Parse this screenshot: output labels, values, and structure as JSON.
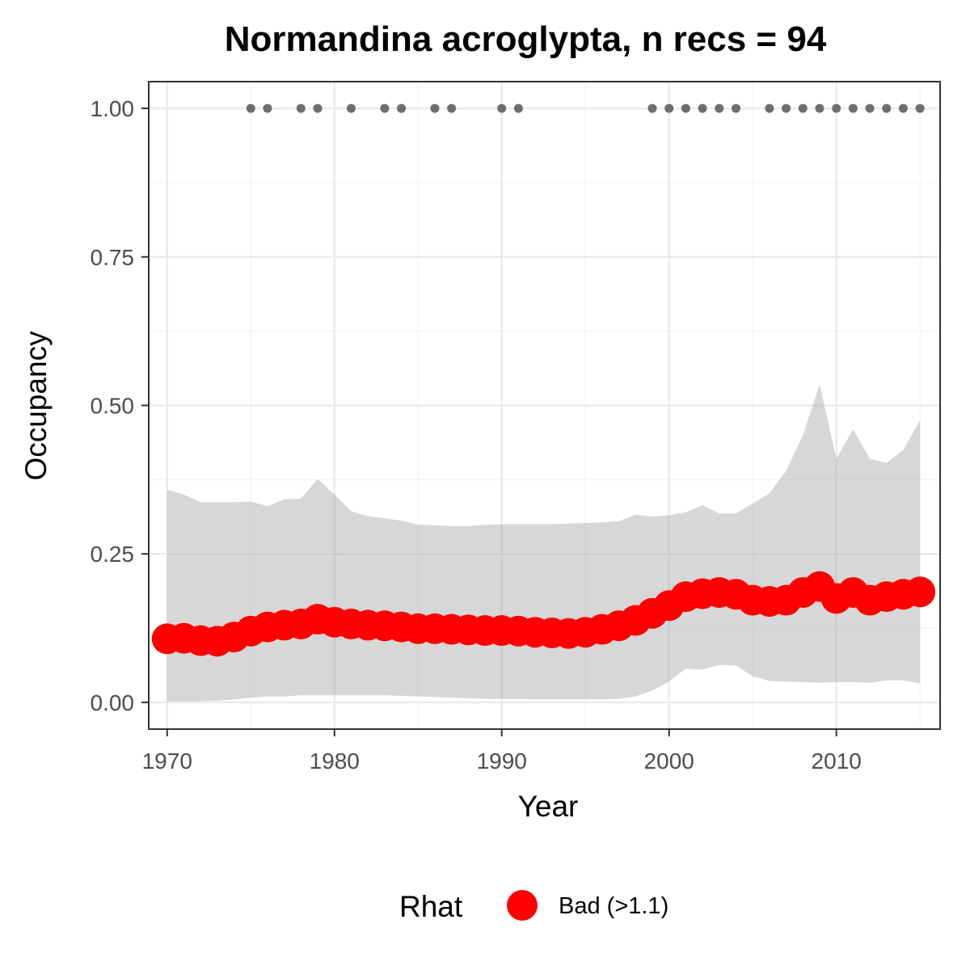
{
  "chart_data": {
    "type": "line",
    "title": "Normandina acroglypta, n recs = 94",
    "xlabel": "Year",
    "ylabel": "Occupancy",
    "xlim": [
      1968.9,
      2016.2
    ],
    "ylim": [
      -0.045,
      1.045
    ],
    "x_ticks": [
      "1970",
      "1980",
      "1990",
      "2000",
      "2010"
    ],
    "x_tick_values": [
      1970,
      1980,
      1990,
      2000,
      2010
    ],
    "y_ticks": [
      "0.00",
      "0.25",
      "0.50",
      "0.75",
      "1.00"
    ],
    "y_tick_values": [
      0,
      0.25,
      0.5,
      0.75,
      1.0
    ],
    "grid": true,
    "legend_position": "bottom",
    "legend": {
      "title": "Rhat",
      "entries": [
        {
          "label": "Bad (>1.1)",
          "color": "#ff0000"
        }
      ]
    },
    "colors": {
      "points": "#ff0000",
      "ribbon": "#d6d6d6",
      "records": "#6e6e6e",
      "grid_major": "#ebebeb",
      "panel_border": "#333333"
    },
    "series": [
      {
        "name": "Occupancy",
        "x": [
          1970,
          1971,
          1972,
          1973,
          1974,
          1975,
          1976,
          1977,
          1978,
          1979,
          1980,
          1981,
          1982,
          1983,
          1984,
          1985,
          1986,
          1987,
          1988,
          1989,
          1990,
          1991,
          1992,
          1993,
          1994,
          1995,
          1996,
          1997,
          1998,
          1999,
          2000,
          2001,
          2002,
          2003,
          2004,
          2005,
          2006,
          2007,
          2008,
          2009,
          2010,
          2011,
          2012,
          2013,
          2014,
          2015
        ],
        "values": [
          0.107,
          0.108,
          0.104,
          0.103,
          0.11,
          0.12,
          0.127,
          0.13,
          0.132,
          0.14,
          0.135,
          0.132,
          0.13,
          0.129,
          0.127,
          0.124,
          0.124,
          0.123,
          0.122,
          0.121,
          0.121,
          0.12,
          0.118,
          0.117,
          0.116,
          0.118,
          0.123,
          0.129,
          0.138,
          0.15,
          0.163,
          0.178,
          0.183,
          0.185,
          0.182,
          0.172,
          0.17,
          0.172,
          0.185,
          0.195,
          0.175,
          0.185,
          0.172,
          0.178,
          0.182,
          0.186
        ],
        "lower": [
          0.002,
          0.002,
          0.002,
          0.003,
          0.005,
          0.008,
          0.01,
          0.01,
          0.012,
          0.012,
          0.012,
          0.012,
          0.012,
          0.012,
          0.011,
          0.01,
          0.009,
          0.008,
          0.007,
          0.006,
          0.006,
          0.006,
          0.005,
          0.005,
          0.005,
          0.005,
          0.005,
          0.006,
          0.01,
          0.02,
          0.035,
          0.057,
          0.055,
          0.063,
          0.062,
          0.044,
          0.036,
          0.035,
          0.034,
          0.033,
          0.034,
          0.034,
          0.033,
          0.037,
          0.037,
          0.032
        ],
        "upper": [
          0.358,
          0.35,
          0.337,
          0.337,
          0.337,
          0.338,
          0.33,
          0.342,
          0.343,
          0.376,
          0.35,
          0.322,
          0.313,
          0.31,
          0.306,
          0.299,
          0.298,
          0.297,
          0.297,
          0.299,
          0.3,
          0.3,
          0.3,
          0.3,
          0.301,
          0.302,
          0.303,
          0.305,
          0.316,
          0.313,
          0.315,
          0.32,
          0.332,
          0.318,
          0.318,
          0.335,
          0.352,
          0.39,
          0.45,
          0.535,
          0.41,
          0.46,
          0.41,
          0.403,
          0.425,
          0.475
        ]
      },
      {
        "name": "Records",
        "x": [
          1975,
          1976,
          1978,
          1979,
          1981,
          1983,
          1984,
          1986,
          1987,
          1990,
          1991,
          1999,
          2000,
          2001,
          2002,
          2003,
          2004,
          2006,
          2007,
          2008,
          2009,
          2010,
          2011,
          2012,
          2013,
          2014,
          2015
        ],
        "values": [
          1,
          1,
          1,
          1,
          1,
          1,
          1,
          1,
          1,
          1,
          1,
          1,
          1,
          1,
          1,
          1,
          1,
          1,
          1,
          1,
          1,
          1,
          1,
          1,
          1,
          1,
          1
        ]
      }
    ]
  }
}
